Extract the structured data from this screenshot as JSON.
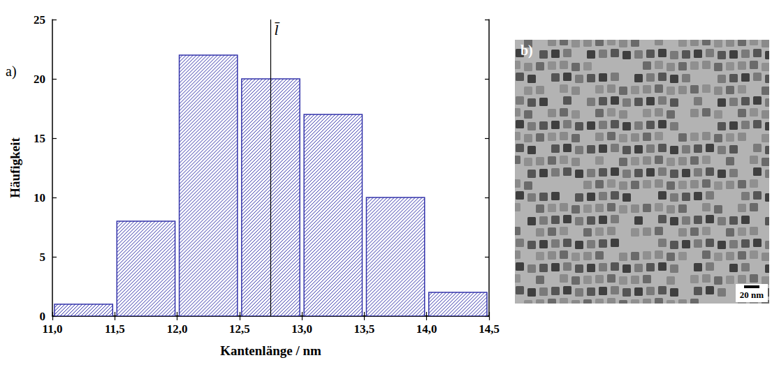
{
  "chart_data": {
    "type": "histogram",
    "panel_label": "a)",
    "x_label": "Kantenlänge / nm",
    "y_label": "Häufigkeit",
    "bins": [
      11.0,
      11.5,
      12.0,
      12.5,
      13.0,
      13.5,
      14.0,
      14.5
    ],
    "values": [
      1,
      8,
      22,
      20,
      17,
      10,
      2
    ],
    "color": "#3333aa",
    "xlim": [
      11.0,
      14.5
    ],
    "xticks": [
      {
        "value": 11.0,
        "label": "11,0"
      },
      {
        "value": 11.5,
        "label": "11,5"
      },
      {
        "value": 12.0,
        "label": "12,0"
      },
      {
        "value": 12.5,
        "label": "12,5"
      },
      {
        "value": 13.0,
        "label": "13,0"
      },
      {
        "value": 13.5,
        "label": "13,5"
      },
      {
        "value": 14.0,
        "label": "14,0"
      },
      {
        "value": 14.5,
        "label": "14,5"
      }
    ],
    "ylim": [
      0,
      25
    ],
    "yticks": [
      0,
      5,
      10,
      15,
      20,
      25
    ],
    "grid": false,
    "annotations": [
      {
        "x": 12.75,
        "text": "l̄"
      }
    ]
  },
  "image": {
    "panel_label": "b)",
    "scale_bar": {
      "label": "20 nm"
    }
  }
}
